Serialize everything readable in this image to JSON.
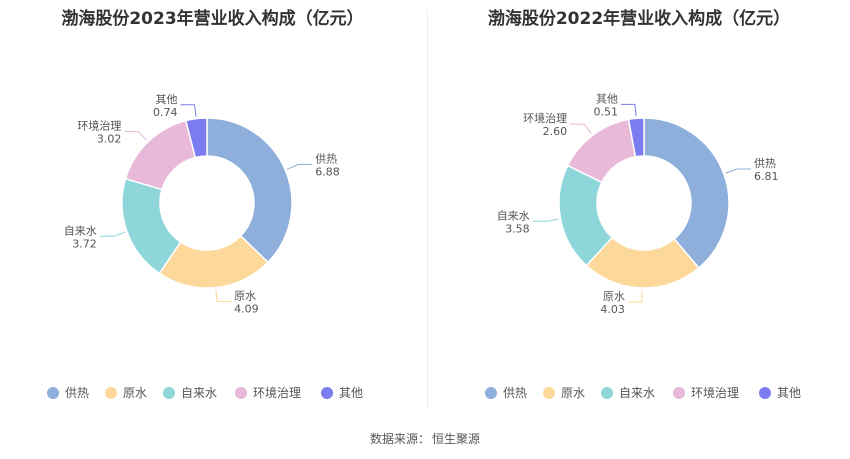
{
  "colors": [
    "#8eaedb",
    "#fdd89b",
    "#8ed6da",
    "#e8b9d9",
    "#7b7cf0"
  ],
  "footer": {
    "label": "数据来源：",
    "source": "恒生聚源"
  },
  "chart_data": [
    {
      "type": "pie",
      "title": "渤海股份2023年营业收入构成（亿元）",
      "categories": [
        "供热",
        "原水",
        "自来水",
        "环境治理",
        "其他"
      ],
      "values": [
        6.88,
        4.09,
        3.72,
        3.02,
        0.74
      ],
      "value_labels": [
        "6.88",
        "4.09",
        "3.72",
        "3.02",
        "0.74"
      ],
      "legend_position": "bottom"
    },
    {
      "type": "pie",
      "title": "渤海股份2022年营业收入构成（亿元）",
      "categories": [
        "供热",
        "原水",
        "自来水",
        "环境治理",
        "其他"
      ],
      "values": [
        6.81,
        4.03,
        3.58,
        2.6,
        0.51
      ],
      "value_labels": [
        "6.81",
        "4.03",
        "3.58",
        "2.60",
        "0.51"
      ],
      "legend_position": "bottom"
    }
  ]
}
